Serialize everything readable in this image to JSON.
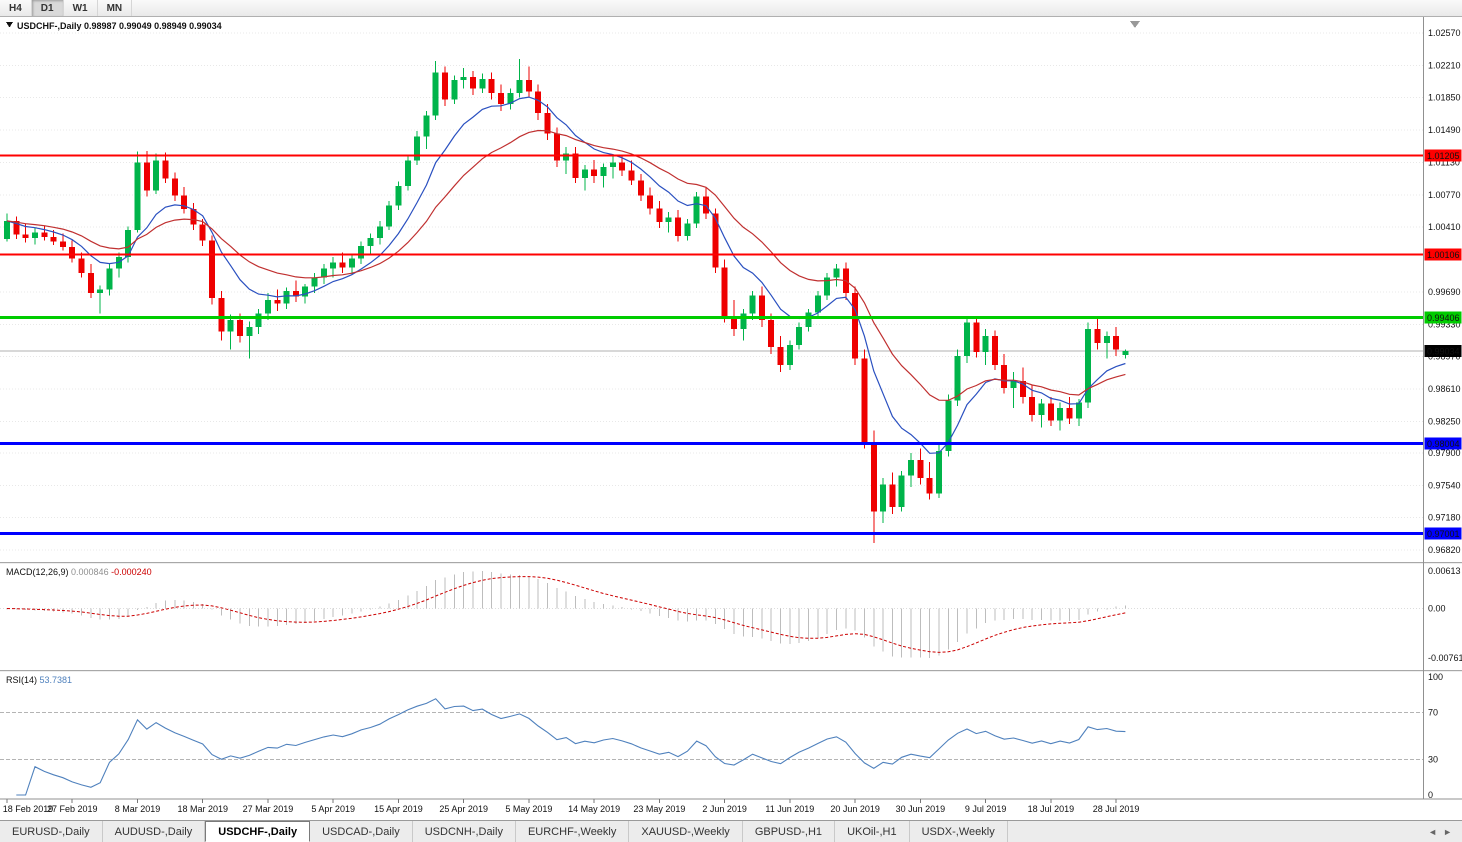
{
  "toolbar": {
    "timeframes": [
      "H4",
      "D1",
      "W1",
      "MN"
    ],
    "active": "D1"
  },
  "chart_header": {
    "symbol_label": "USDCHF-,Daily",
    "open": "0.98987",
    "high": "0.99049",
    "low": "0.98949",
    "close": "0.99034"
  },
  "icons": {
    "header_dropdown": "black-down-triangle",
    "chart_shift_marker": "gray-down-triangle",
    "tab_scroll_left": "◄",
    "tab_scroll_right": "►"
  },
  "tabs": [
    {
      "label": "EURUSD-,Daily",
      "active": false
    },
    {
      "label": "AUDUSD-,Daily",
      "active": false
    },
    {
      "label": "USDCHF-,Daily",
      "active": true
    },
    {
      "label": "USDCAD-,Daily",
      "active": false
    },
    {
      "label": "USDCNH-,Daily",
      "active": false
    },
    {
      "label": "EURCHF-,Weekly",
      "active": false
    },
    {
      "label": "XAUUSD-,Weekly",
      "active": false
    },
    {
      "label": "GBPUSD-,H1",
      "active": false
    },
    {
      "label": "UKOil-,H1",
      "active": false
    },
    {
      "label": "USDX-,Weekly",
      "active": false
    }
  ],
  "chart_data": {
    "type": "candlestick",
    "symbol": "USDCHF",
    "timeframe": "Daily",
    "colors": {
      "bull": "#00B44A",
      "bear": "#EE0000",
      "grid": "#e8e8e8",
      "bid_line": "#b0b0b0"
    },
    "price_axis": {
      "ticks": [
        "1.02570",
        "1.02210",
        "1.01850",
        "1.01490",
        "1.01130",
        "1.00770",
        "1.00410",
        "0.99690",
        "0.99330",
        "0.98970",
        "0.98610",
        "0.98250",
        "0.97900",
        "0.97540",
        "0.97180",
        "0.96820"
      ],
      "max": 1.0257,
      "min": 0.9682,
      "step": 0.0036
    },
    "x_labels": [
      "18 Feb 2019",
      "27 Feb 2019",
      "8 Mar 2019",
      "18 Mar 2019",
      "27 Mar 2019",
      "5 Apr 2019",
      "15 Apr 2019",
      "25 Apr 2019",
      "5 May 2019",
      "14 May 2019",
      "23 May 2019",
      "2 Jun 2019",
      "11 Jun 2019",
      "20 Jun 2019",
      "30 Jun 2019",
      "9 Jul 2019",
      "18 Jul 2019",
      "28 Jul 2019"
    ],
    "label_interval": 7,
    "hlines": [
      {
        "price": 1.01205,
        "label": "1.01205",
        "color": "#FF0000",
        "width": 2,
        "role": "resistance"
      },
      {
        "price": 1.00106,
        "label": "1.00106",
        "color": "#FF0000",
        "width": 2,
        "role": "resistance"
      },
      {
        "price": 0.99406,
        "label": "0.99406",
        "color": "#00CC00",
        "width": 3,
        "role": "pivot"
      },
      {
        "price": 0.98004,
        "label": "0.98004",
        "color": "#0000FF",
        "width": 3,
        "role": "support"
      },
      {
        "price": 0.97001,
        "label": "0.97001",
        "color": "#0000FF",
        "width": 3,
        "role": "support"
      }
    ],
    "bid": {
      "price": 0.99034,
      "label": "0.99034",
      "color": "#000000"
    },
    "ma_fast": {
      "period": 9,
      "color": "#2A50C0"
    },
    "ma_slow": {
      "period": 20,
      "color": "#C03030"
    },
    "macd": {
      "label": "MACD(12,26,9)",
      "values": [
        "0.000846",
        "-0.000240"
      ],
      "axis": [
        "0.00613",
        "0.00",
        "-0.007612"
      ],
      "fast": 12,
      "slow": 26,
      "signal": 9,
      "hist_color": "#bdbdbd",
      "signal_color": "#CC0000"
    },
    "rsi": {
      "label": "RSI(14)",
      "value": "53.7381",
      "period": 14,
      "axis": [
        "100",
        "70",
        "30",
        "0"
      ],
      "levels": [
        70,
        30
      ],
      "color": "#4F81BD",
      "level_color": "#b4b4b4"
    },
    "candles": [
      [
        1.0028,
        1.0056,
        1.0025,
        1.0048
      ],
      [
        1.0048,
        1.0053,
        1.0028,
        1.0033
      ],
      [
        1.0033,
        1.0045,
        1.0024,
        1.0029
      ],
      [
        1.0029,
        1.004,
        1.0022,
        1.0035
      ],
      [
        1.0035,
        1.0043,
        1.0026,
        1.003
      ],
      [
        1.003,
        1.0038,
        1.0021,
        1.0025
      ],
      [
        1.0025,
        1.0034,
        1.0015,
        1.0019
      ],
      [
        1.0019,
        1.0026,
        1.0002,
        1.0006
      ],
      [
        1.0006,
        1.0013,
        0.9985,
        0.999
      ],
      [
        0.999,
        1.0,
        0.9962,
        0.9968
      ],
      [
        0.9968,
        0.9976,
        0.9945,
        0.9972
      ],
      [
        0.9972,
        1.0,
        0.9965,
        0.9995
      ],
      [
        0.9995,
        1.0013,
        0.9985,
        1.0008
      ],
      [
        1.0008,
        1.0042,
        1.0002,
        1.0038
      ],
      [
        1.0038,
        1.0125,
        1.0035,
        1.0113
      ],
      [
        1.0113,
        1.0126,
        1.0075,
        1.0082
      ],
      [
        1.0082,
        1.0123,
        1.0078,
        1.0115
      ],
      [
        1.0115,
        1.0124,
        1.009,
        1.0095
      ],
      [
        1.0095,
        1.0102,
        1.007,
        1.0076
      ],
      [
        1.0076,
        1.0086,
        1.0056,
        1.0061
      ],
      [
        1.0061,
        1.0068,
        1.0038,
        1.0044
      ],
      [
        1.0044,
        1.005,
        1.002,
        1.0026
      ],
      [
        1.0026,
        1.0032,
        0.9955,
        0.9962
      ],
      [
        0.9962,
        0.997,
        0.9915,
        0.9925
      ],
      [
        0.9925,
        0.9944,
        0.9905,
        0.9938
      ],
      [
        0.9938,
        0.9945,
        0.9913,
        0.992
      ],
      [
        0.992,
        0.9936,
        0.9895,
        0.993
      ],
      [
        0.993,
        0.995,
        0.9922,
        0.9945
      ],
      [
        0.9945,
        0.9968,
        0.9938,
        0.996
      ],
      [
        0.996,
        0.9972,
        0.9948,
        0.9956
      ],
      [
        0.9956,
        0.9974,
        0.995,
        0.997
      ],
      [
        0.997,
        0.9982,
        0.9958,
        0.9964
      ],
      [
        0.9964,
        0.9978,
        0.9956,
        0.9975
      ],
      [
        0.9975,
        0.999,
        0.9968,
        0.9985
      ],
      [
        0.9985,
        1.0,
        0.9978,
        0.9995
      ],
      [
        0.9995,
        1.0008,
        0.9985,
        1.0002
      ],
      [
        1.0002,
        1.0013,
        0.999,
        0.9996
      ],
      [
        0.9996,
        1.001,
        0.9988,
        1.0006
      ],
      [
        1.0006,
        1.0025,
        1.0,
        1.002
      ],
      [
        1.002,
        1.0034,
        1.0012,
        1.0029
      ],
      [
        1.0029,
        1.0048,
        1.0022,
        1.0042
      ],
      [
        1.0042,
        1.007,
        1.0038,
        1.0065
      ],
      [
        1.0065,
        1.0092,
        1.006,
        1.0087
      ],
      [
        1.0087,
        1.012,
        1.0082,
        1.0115
      ],
      [
        1.0115,
        1.0148,
        1.011,
        1.0142
      ],
      [
        1.0142,
        1.017,
        1.0128,
        1.0165
      ],
      [
        1.0165,
        1.0226,
        1.016,
        1.0213
      ],
      [
        1.0213,
        1.022,
        1.0176,
        1.0183
      ],
      [
        1.0183,
        1.021,
        1.0178,
        1.0205
      ],
      [
        1.0205,
        1.0218,
        1.0195,
        1.0208
      ],
      [
        1.0208,
        1.0215,
        1.0188,
        1.0195
      ],
      [
        1.0195,
        1.0212,
        1.019,
        1.0206
      ],
      [
        1.0206,
        1.0213,
        1.0183,
        1.019
      ],
      [
        1.019,
        1.02,
        1.017,
        1.0178
      ],
      [
        1.0178,
        1.0195,
        1.0172,
        1.019
      ],
      [
        1.019,
        1.0228,
        1.0185,
        1.0205
      ],
      [
        1.0205,
        1.022,
        1.0185,
        1.0192
      ],
      [
        1.0192,
        1.02,
        1.016,
        1.0168
      ],
      [
        1.0168,
        1.0178,
        1.0138,
        1.0145
      ],
      [
        1.0145,
        1.0152,
        1.0108,
        1.0115
      ],
      [
        1.0115,
        1.013,
        1.01,
        1.0123
      ],
      [
        1.0123,
        1.013,
        1.009,
        1.0096
      ],
      [
        1.0096,
        1.011,
        1.0082,
        1.0105
      ],
      [
        1.0105,
        1.0116,
        1.009,
        1.0098
      ],
      [
        1.0098,
        1.0112,
        1.0085,
        1.0108
      ],
      [
        1.0108,
        1.012,
        1.0095,
        1.0113
      ],
      [
        1.0113,
        1.0122,
        1.0098,
        1.0104
      ],
      [
        1.0104,
        1.0115,
        1.0088,
        1.0093
      ],
      [
        1.0093,
        1.01,
        1.007,
        1.0076
      ],
      [
        1.0076,
        1.0085,
        1.0055,
        1.0062
      ],
      [
        1.0062,
        1.007,
        1.004,
        1.0047
      ],
      [
        1.0047,
        1.0058,
        1.0035,
        1.0052
      ],
      [
        1.0052,
        1.006,
        1.0025,
        1.0031
      ],
      [
        1.0031,
        1.005,
        1.0026,
        1.0045
      ],
      [
        1.0045,
        1.008,
        1.004,
        1.0075
      ],
      [
        1.0075,
        1.0085,
        1.005,
        1.0056
      ],
      [
        1.0056,
        1.0062,
        0.999,
        0.9996
      ],
      [
        0.9996,
        1.0005,
        0.9935,
        0.9942
      ],
      [
        0.9942,
        0.996,
        0.992,
        0.9928
      ],
      [
        0.9928,
        0.995,
        0.9915,
        0.9945
      ],
      [
        0.9945,
        0.997,
        0.9938,
        0.9965
      ],
      [
        0.9965,
        0.9975,
        0.993,
        0.9938
      ],
      [
        0.9938,
        0.9945,
        0.99,
        0.9908
      ],
      [
        0.9908,
        0.992,
        0.988,
        0.9888
      ],
      [
        0.9888,
        0.9915,
        0.9882,
        0.991
      ],
      [
        0.991,
        0.9935,
        0.9905,
        0.993
      ],
      [
        0.993,
        0.995,
        0.9925,
        0.9946
      ],
      [
        0.9946,
        0.997,
        0.994,
        0.9965
      ],
      [
        0.9965,
        0.999,
        0.996,
        0.9985
      ],
      [
        0.9985,
        1.0,
        0.9975,
        0.9995
      ],
      [
        0.9995,
        1.0002,
        0.996,
        0.9968
      ],
      [
        0.9968,
        0.9975,
        0.9888,
        0.9895
      ],
      [
        0.9895,
        0.9905,
        0.9795,
        0.9802
      ],
      [
        0.9802,
        0.9815,
        0.969,
        0.9725
      ],
      [
        0.9725,
        0.9762,
        0.9712,
        0.9755
      ],
      [
        0.9755,
        0.9768,
        0.9722,
        0.973
      ],
      [
        0.973,
        0.977,
        0.9725,
        0.9765
      ],
      [
        0.9765,
        0.979,
        0.9752,
        0.9782
      ],
      [
        0.9782,
        0.9795,
        0.9755,
        0.9762
      ],
      [
        0.9762,
        0.978,
        0.9738,
        0.9745
      ],
      [
        0.9745,
        0.98,
        0.974,
        0.9792
      ],
      [
        0.9792,
        0.9855,
        0.9786,
        0.9848
      ],
      [
        0.9848,
        0.9905,
        0.9842,
        0.9898
      ],
      [
        0.9898,
        0.9942,
        0.989,
        0.9935
      ],
      [
        0.9935,
        0.994,
        0.9896,
        0.9902
      ],
      [
        0.9902,
        0.9928,
        0.9888,
        0.992
      ],
      [
        0.992,
        0.9926,
        0.9882,
        0.9888
      ],
      [
        0.9888,
        0.99,
        0.9856,
        0.9862
      ],
      [
        0.9862,
        0.988,
        0.984,
        0.987
      ],
      [
        0.987,
        0.9885,
        0.9845,
        0.9852
      ],
      [
        0.9852,
        0.9865,
        0.9825,
        0.9832
      ],
      [
        0.9832,
        0.985,
        0.9818,
        0.9845
      ],
      [
        0.9845,
        0.9852,
        0.982,
        0.9826
      ],
      [
        0.9826,
        0.9846,
        0.9815,
        0.984
      ],
      [
        0.984,
        0.9852,
        0.9822,
        0.9828
      ],
      [
        0.9828,
        0.985,
        0.982,
        0.9846
      ],
      [
        0.9846,
        0.9935,
        0.984,
        0.9928
      ],
      [
        0.9928,
        0.994,
        0.9905,
        0.9912
      ],
      [
        0.9912,
        0.9925,
        0.9895,
        0.992
      ],
      [
        0.992,
        0.993,
        0.9898,
        0.9905
      ],
      [
        0.98987,
        0.99049,
        0.98949,
        0.99034
      ]
    ]
  }
}
